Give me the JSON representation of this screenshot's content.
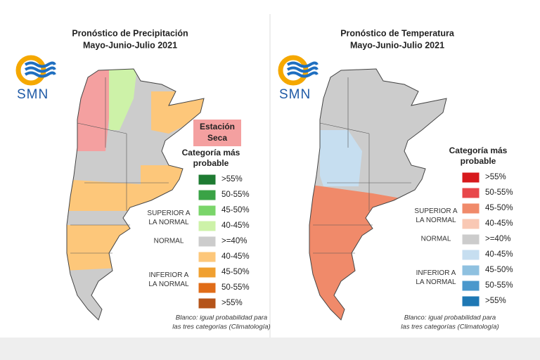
{
  "panels": [
    {
      "title": [
        "Pronóstico de Precipitación",
        "Mayo-Junio-Julio 2021"
      ],
      "logo": "SMN",
      "badge": [
        "Estación",
        "Seca"
      ],
      "legend_title": [
        "Categoría más",
        "probable"
      ],
      "legend": [
        {
          "label": ">55%",
          "color": "#1e7b32"
        },
        {
          "label": "50-55%",
          "color": "#3aa346"
        },
        {
          "label": "45-50%",
          "color": "#7ad56a"
        },
        {
          "label": "40-45%",
          "color": "#cdf2a8"
        },
        {
          "label": ">=40%",
          "color": "#cccccc"
        },
        {
          "label": "40-45%",
          "color": "#fdc77a"
        },
        {
          "label": "45-50%",
          "color": "#f0a030"
        },
        {
          "label": "50-55%",
          "color": "#e06c18"
        },
        {
          "label": ">55%",
          "color": "#b5541a"
        }
      ],
      "groups": [
        [
          "SUPERIOR A",
          "LA NORMAL"
        ],
        [
          "NORMAL"
        ],
        [
          "INFERIOR A",
          "LA NORMAL"
        ]
      ],
      "note": [
        "Blanco: igual probabilidad para",
        "las tres categorías (Climatología)"
      ]
    },
    {
      "title": [
        "Pronóstico de Temperatura",
        "Mayo-Junio-Julio 2021"
      ],
      "logo": "SMN",
      "legend_title": [
        "Categoría más",
        "probable"
      ],
      "legend": [
        {
          "label": ">55%",
          "color": "#d7191c"
        },
        {
          "label": "50-55%",
          "color": "#e8474a"
        },
        {
          "label": "45-50%",
          "color": "#f08a6a"
        },
        {
          "label": "40-45%",
          "color": "#f9c8b4"
        },
        {
          "label": ">=40%",
          "color": "#cccccc"
        },
        {
          "label": "40-45%",
          "color": "#c6def0"
        },
        {
          "label": "45-50%",
          "color": "#8fc1e0"
        },
        {
          "label": "50-55%",
          "color": "#4a98cc"
        },
        {
          "label": ">55%",
          "color": "#1f78b4"
        }
      ],
      "groups": [
        [
          "SUPERIOR A",
          "LA NORMAL"
        ],
        [
          "NORMAL"
        ],
        [
          "INFERIOR A",
          "LA NORMAL"
        ]
      ],
      "note": [
        "Blanco: igual probabilidad para",
        "las tres categorías (Climatología)"
      ]
    }
  ]
}
